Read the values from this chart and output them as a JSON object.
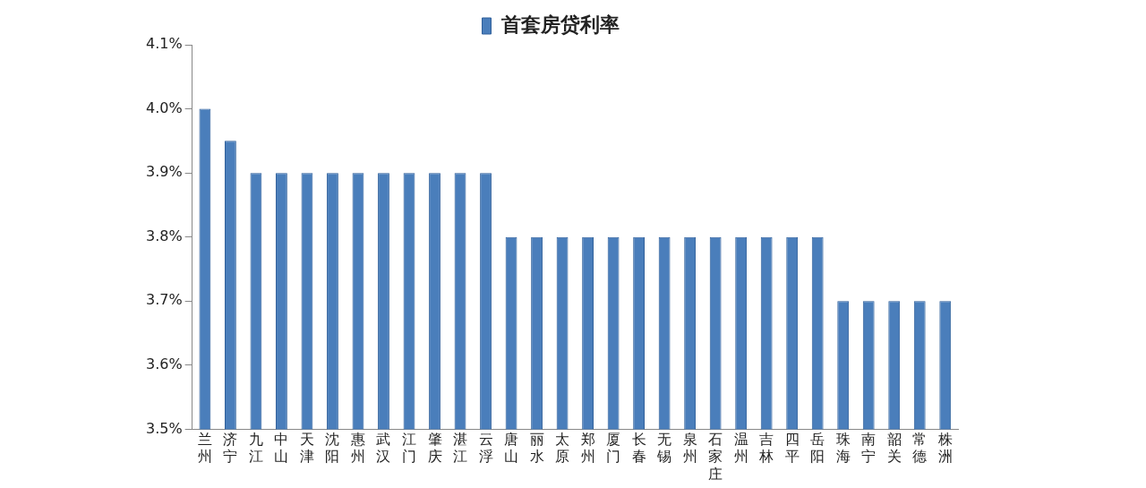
{
  "chart_data": {
    "type": "bar",
    "categories": [
      "兰州",
      "济宁",
      "九江",
      "中山",
      "天津",
      "沈阳",
      "惠州",
      "武汉",
      "江门",
      "肇庆",
      "湛江",
      "云浮",
      "唐山",
      "丽水",
      "太原",
      "郑州",
      "厦门",
      "长春",
      "无锡",
      "泉州",
      "石家庄",
      "温州",
      "吉林",
      "四平",
      "岳阳",
      "珠海",
      "南宁",
      "韶关",
      "常德",
      "株洲"
    ],
    "series": [
      {
        "name": "首套房贷利率",
        "color": "#4a7ebb",
        "values": [
          4.0,
          3.95,
          3.9,
          3.9,
          3.9,
          3.9,
          3.9,
          3.9,
          3.9,
          3.9,
          3.9,
          3.9,
          3.8,
          3.8,
          3.8,
          3.8,
          3.8,
          3.8,
          3.8,
          3.8,
          3.8,
          3.8,
          3.8,
          3.8,
          3.8,
          3.7,
          3.7,
          3.7,
          3.7,
          3.7
        ]
      }
    ],
    "ylim": [
      3.5,
      4.1
    ],
    "yticks": [
      {
        "value": 3.5,
        "label": "3.5%"
      },
      {
        "value": 3.6,
        "label": "3.6%"
      },
      {
        "value": 3.7,
        "label": "3.7%"
      },
      {
        "value": 3.8,
        "label": "3.8%"
      },
      {
        "value": 3.9,
        "label": "3.9%"
      },
      {
        "value": 4.0,
        "label": "4.0%"
      },
      {
        "value": 4.1,
        "label": "4.1%"
      }
    ],
    "grid": false,
    "legend": "top"
  }
}
